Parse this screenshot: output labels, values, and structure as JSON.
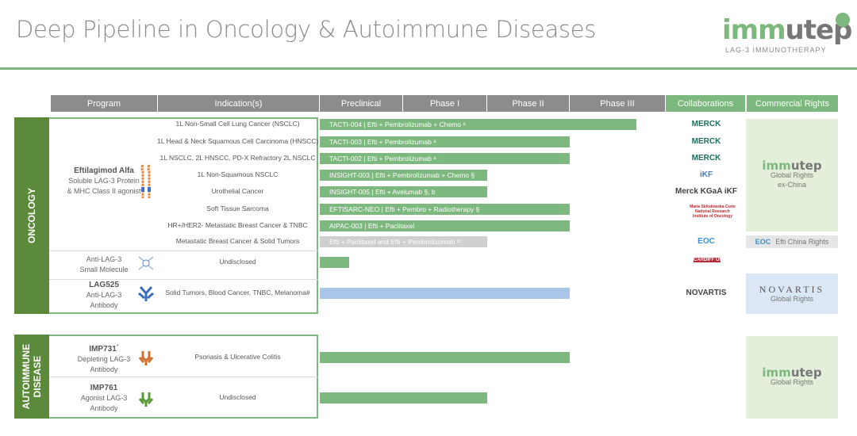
{
  "title": "Deep Pipeline in Oncology & Autoimmune Diseases",
  "logo": {
    "word_light": "imm",
    "word_dark": "utep",
    "tagline": "LAG-3 IMMUNOTHERAPY"
  },
  "headers": [
    "Program",
    "Indication(s)",
    "Preclinical",
    "Phase I",
    "Phase II",
    "Phase III",
    "Collaborations",
    "Commercial Rights"
  ],
  "sections": {
    "oncology": "ONCOLOGY",
    "autoimmune": "AUTOIMMUNE DISEASE"
  },
  "colors": {
    "green": "#7db87f",
    "dark_green": "#5b8a3b",
    "header_grey": "#8c8c8c",
    "grey_bar": "#cfcfcf",
    "blue_bar": "#a9c6e8"
  },
  "programs": [
    {
      "name": "Eftilagimod Alfa",
      "desc1": "Soluble LAG-3 Protein",
      "desc2": "& MHC Class II agonist",
      "icon": "lag3-protein-icon"
    },
    {
      "name": "",
      "desc1": "Anti-LAG-3",
      "desc2": "Small Molecule",
      "icon": "small-molecule-icon"
    },
    {
      "name": "LAG525",
      "desc1": "Anti-LAG-3",
      "desc2": "Antibody",
      "icon": "antibody-icon-blue"
    },
    {
      "name": "IMP731",
      "sup": "*",
      "desc1": "Depleting LAG-3",
      "desc2": "Antibody",
      "icon": "antibody-icon-orange"
    },
    {
      "name": "IMP761",
      "desc1": "Agonist LAG-3",
      "desc2": "Antibody",
      "icon": "antibody-icon-green"
    }
  ],
  "rows": [
    {
      "indication": "1L Non-Small Cell Lung Cancer (NSCLC)",
      "bar": "TACTI-004 | Efti + Pembrolizumab + Chemo ᵃ",
      "progress_phases": 3.7,
      "style": "green",
      "collab": "MERCK"
    },
    {
      "indication": "1L Head & Neck Squamous Cell Carcinoma (HNSCC)",
      "bar": "TACTI-003 | Efti + Pembrolizumab ᵃ",
      "progress_phases": 3.0,
      "style": "green",
      "collab": "MERCK"
    },
    {
      "indication": "1L NSCLC, 2L HNSCC, PD-X Refractory 2L NSCLC",
      "bar": "TACTI-002 | Efti + Pembrolizumab ᵃ",
      "progress_phases": 3.0,
      "style": "green",
      "collab": "MERCK"
    },
    {
      "indication": "1L Non-Squamous NSCLC",
      "bar": "INSIGHT-003 | Efti + Pembrolizumab + Chemo §",
      "progress_phases": 2.0,
      "style": "green",
      "collab": "iKF"
    },
    {
      "indication": "Urothelial Cancer",
      "bar": "INSIGHT-005 | Efti + Avelumab §, b",
      "progress_phases": 2.0,
      "style": "green",
      "collab": "Merck KGaA  iKF"
    },
    {
      "indication": "Soft Tissue Sarcoma",
      "bar": "EFTISARC-NEO | Efti + Pembro + Radiotherapy §",
      "progress_phases": 3.0,
      "style": "green",
      "collab": "Maria Sklodowska-Curie National Research Institute of Oncology"
    },
    {
      "indication": "HR+/HER2- Metastatic Breast Cancer & TNBC",
      "bar": "AIPAC-003 | Efti + Paclitaxel",
      "progress_phases": 3.0,
      "style": "green",
      "collab": ""
    },
    {
      "indication": "Metastatic Breast Cancer & Solid Tumors",
      "bar": "Efti + Paclitaxel and Efti + Pembrolizumab ᶜᶜ",
      "progress_phases": 2.0,
      "style": "grey",
      "collab": "EOC"
    },
    {
      "indication": "Undisclosed",
      "bar": "",
      "progress_phases": 0.35,
      "style": "green",
      "collab": "CARDIFF UNIVERSITY"
    },
    {
      "indication": "Solid Tumors, Blood Cancer, TNBC, Melanoma#",
      "bar": "",
      "progress_phases": 3.0,
      "style": "blue",
      "collab": "NOVARTIS"
    },
    {
      "indication": "Psoriasis & Ulcerative Colitis",
      "bar": "",
      "progress_phases": 3.0,
      "style": "green",
      "collab": ""
    },
    {
      "indication": "Undisclosed",
      "bar": "",
      "progress_phases": 2.0,
      "style": "green",
      "collab": ""
    }
  ],
  "rights": [
    {
      "logo": "immutep",
      "line1": "Global Rights",
      "line2": "ex-China"
    },
    {
      "logo": "EOC",
      "line1": "Efti China Rights"
    },
    {
      "logo": "NOVARTIS",
      "line1": "Global Rights"
    },
    {
      "logo": "immutep",
      "line1": "Global Rights"
    }
  ]
}
